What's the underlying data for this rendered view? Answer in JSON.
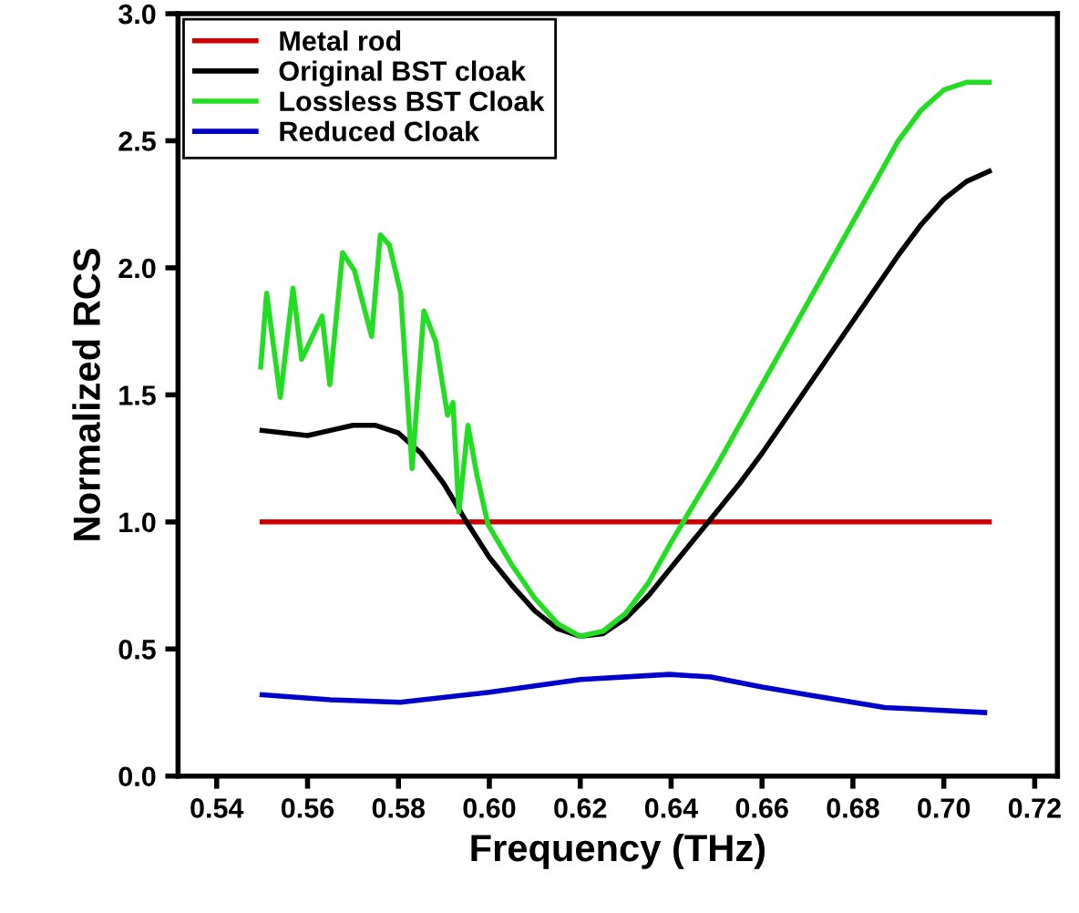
{
  "chart_data": {
    "type": "line",
    "xlabel": "Frequency (THz)",
    "ylabel": "Normalized RCS",
    "xlim": [
      0.5315,
      0.725
    ],
    "ylim": [
      0,
      3.0
    ],
    "xticks": [
      {
        "value": 0.54,
        "label": "0.54"
      },
      {
        "value": 0.56,
        "label": "0.56"
      },
      {
        "value": 0.58,
        "label": "0.58"
      },
      {
        "value": 0.6,
        "label": "0.60"
      },
      {
        "value": 0.62,
        "label": "0.62"
      },
      {
        "value": 0.64,
        "label": "0.64"
      },
      {
        "value": 0.66,
        "label": "0.66"
      },
      {
        "value": 0.68,
        "label": "0.68"
      },
      {
        "value": 0.7,
        "label": "0.70"
      },
      {
        "value": 0.72,
        "label": "0.72"
      }
    ],
    "yticks": [
      {
        "value": 0,
        "label": "0.0"
      },
      0.5,
      {
        "value": 1,
        "label": "1.0"
      },
      1.5,
      {
        "value": 2,
        "label": "2.0"
      },
      2.5,
      {
        "value": 3,
        "label": "3.0"
      }
    ],
    "grid": false,
    "legend": "top left",
    "marker": "none",
    "line_style": "solid",
    "series": [
      {
        "name": "Metal rod",
        "color": "#cc0000",
        "x": [
          0.55,
          0.71
        ],
        "values": [
          1.0,
          1.0
        ]
      },
      {
        "name": "Original BST cloak",
        "color": "#000000",
        "x": [
          0.55,
          0.555,
          0.56,
          0.565,
          0.57,
          0.575,
          0.58,
          0.585,
          0.59,
          0.595,
          0.6,
          0.605,
          0.61,
          0.615,
          0.62,
          0.625,
          0.63,
          0.635,
          0.64,
          0.645,
          0.65,
          0.655,
          0.66,
          0.665,
          0.67,
          0.675,
          0.68,
          0.685,
          0.69,
          0.695,
          0.7,
          0.705,
          0.71
        ],
        "values": [
          1.36,
          1.35,
          1.34,
          1.36,
          1.38,
          1.38,
          1.35,
          1.27,
          1.15,
          1.0,
          0.86,
          0.75,
          0.65,
          0.58,
          0.55,
          0.56,
          0.62,
          0.71,
          0.82,
          0.93,
          1.04,
          1.15,
          1.27,
          1.4,
          1.53,
          1.66,
          1.79,
          1.92,
          2.05,
          2.17,
          2.27,
          2.34,
          2.38
        ]
      },
      {
        "name": "Lossless BST Cloak",
        "color": "#22dd22",
        "x": [
          0.5497,
          0.551,
          0.554,
          0.5568,
          0.5587,
          0.5632,
          0.5649,
          0.5677,
          0.5703,
          0.5741,
          0.576,
          0.578,
          0.5805,
          0.583,
          0.5856,
          0.5882,
          0.5908,
          0.592,
          0.5933,
          0.5953,
          0.5972,
          0.5997,
          0.605,
          0.61,
          0.615,
          0.62,
          0.625,
          0.63,
          0.635,
          0.64,
          0.645,
          0.65,
          0.655,
          0.66,
          0.665,
          0.67,
          0.675,
          0.68,
          0.685,
          0.69,
          0.695,
          0.7,
          0.705,
          0.71
        ],
        "values": [
          1.61,
          1.9,
          1.49,
          1.92,
          1.64,
          1.81,
          1.54,
          2.06,
          1.99,
          1.73,
          2.13,
          2.09,
          1.9,
          1.21,
          1.83,
          1.71,
          1.42,
          1.47,
          1.04,
          1.38,
          1.19,
          0.99,
          0.83,
          0.7,
          0.6,
          0.55,
          0.57,
          0.64,
          0.76,
          0.92,
          1.07,
          1.22,
          1.38,
          1.54,
          1.7,
          1.86,
          2.02,
          2.18,
          2.34,
          2.5,
          2.62,
          2.7,
          2.73,
          2.73
        ]
      },
      {
        "name": "Reduced Cloak",
        "color": "#0000cc",
        "x": [
          0.55,
          0.565,
          0.5804,
          0.6,
          0.62,
          0.6396,
          0.6488,
          0.66,
          0.67,
          0.687,
          0.709
        ],
        "values": [
          0.32,
          0.3,
          0.29,
          0.33,
          0.38,
          0.4,
          0.39,
          0.35,
          0.32,
          0.27,
          0.25
        ]
      }
    ]
  }
}
